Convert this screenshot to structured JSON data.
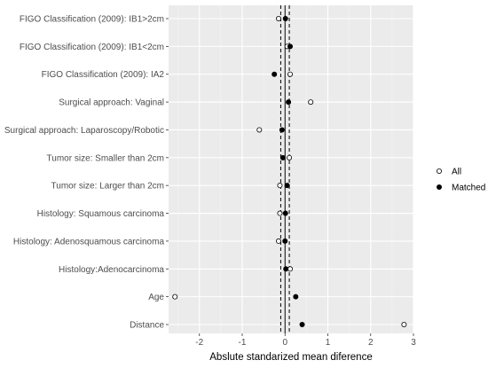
{
  "chart_data": {
    "type": "scatter",
    "title": "",
    "xlabel": "Abslute standarized mean diference",
    "ylabel": "",
    "xlim": [
      -2.72,
      3.0
    ],
    "xticks": [
      -2,
      -1,
      0,
      1,
      2,
      3
    ],
    "reference_lines": [
      -0.1,
      0,
      0.1
    ],
    "categories": [
      "FIGO  Classification (2009): IB1>2cm",
      "FIGO  Classification (2009): IB1<2cm",
      "FIGO  Classification (2009): IA2",
      "Surgical approach: Vaginal",
      "Surgical approach: Laparoscopy/Robotic",
      "Tumor size: Smaller than 2cm",
      "Tumor size: Larger than 2cm",
      "Histology: Squamous carcinoma",
      "Histology: Adenosquamous carcinoma",
      "Histology:Adenocarcinoma",
      "Age",
      "Distance"
    ],
    "series": [
      {
        "name": "All",
        "marker": "open-circle",
        "values": [
          -0.15,
          0.05,
          0.12,
          0.6,
          -0.6,
          0.1,
          -0.12,
          -0.12,
          -0.15,
          0.12,
          -2.57,
          2.78
        ]
      },
      {
        "name": "Matched",
        "marker": "filled-circle",
        "values": [
          0.01,
          0.12,
          -0.25,
          0.08,
          -0.07,
          -0.05,
          0.05,
          0.01,
          0.0,
          0.02,
          0.25,
          0.4
        ]
      }
    ],
    "grid": true,
    "legend_position": "right"
  }
}
